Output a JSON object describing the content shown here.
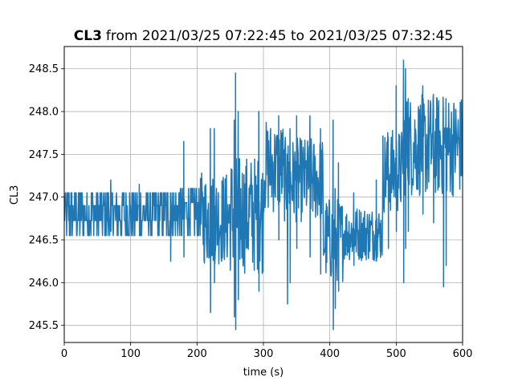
{
  "chart_data": {
    "type": "line",
    "title": {
      "bold_part": "CL3",
      "rest": "from 2021/03/25 07:22:45 to 2021/03/25 07:32:45"
    },
    "xlabel": "time (s)",
    "ylabel": "CL3",
    "xlim": [
      0,
      600
    ],
    "ylim": [
      245.3,
      248.76
    ],
    "x_ticks": [
      0,
      100,
      200,
      300,
      400,
      500,
      600
    ],
    "x_tick_labels": [
      "0",
      "100",
      "200",
      "300",
      "400",
      "500",
      "600"
    ],
    "y_ticks": [
      245.5,
      246.0,
      246.5,
      247.0,
      247.5,
      248.0,
      248.5
    ],
    "y_tick_labels": [
      "245.5",
      "246.0",
      "246.5",
      "247.0",
      "247.5",
      "248.0",
      "248.5"
    ],
    "grid": true,
    "line_color": "#1f77b4",
    "series": [
      {
        "x": [
          0,
          5,
          10,
          15,
          20,
          25,
          30,
          35,
          40,
          45,
          50,
          55,
          60,
          65,
          70,
          75,
          80,
          85,
          90,
          95,
          100,
          105,
          110,
          115,
          120,
          125,
          130,
          135,
          140,
          145,
          150,
          155,
          160,
          165,
          170,
          175,
          180,
          185,
          190,
          195,
          200,
          205,
          210,
          215,
          220,
          225,
          230,
          235,
          240,
          245,
          250,
          255,
          260,
          265,
          270,
          275,
          280,
          285,
          290,
          295,
          300,
          305,
          310,
          315,
          320,
          325,
          330,
          335,
          340,
          345,
          350,
          355,
          360,
          365,
          370,
          375,
          380,
          385,
          390,
          395,
          400,
          405,
          410,
          415,
          420,
          425,
          430,
          435,
          440,
          445,
          450,
          455,
          460,
          465,
          470,
          475,
          480,
          485,
          490,
          495,
          500,
          505,
          510,
          515,
          520,
          525,
          530,
          535,
          540,
          545,
          550,
          555,
          560,
          565,
          570,
          575,
          580,
          585,
          590,
          595,
          600
        ],
        "y": [
          246.8,
          246.95,
          246.7,
          247.0,
          246.6,
          246.9,
          246.75,
          247.0,
          246.6,
          246.85,
          246.95,
          246.7,
          246.8,
          247.0,
          246.65,
          246.9,
          246.8,
          247.0,
          246.7,
          246.95,
          246.6,
          246.85,
          247.0,
          246.75,
          246.65,
          246.9,
          247.0,
          246.7,
          246.8,
          247.0,
          246.6,
          246.9,
          246.75,
          246.8,
          247.0,
          246.7,
          246.85,
          246.9,
          246.8,
          246.7,
          246.6,
          247.0,
          246.5,
          246.4,
          247.05,
          247.25,
          246.45,
          246.7,
          246.3,
          246.55,
          246.8,
          247.1,
          246.6,
          247.25,
          247.4,
          247.0,
          246.7,
          247.1,
          246.95,
          247.3,
          247.1,
          247.4,
          247.45,
          246.8,
          247.5,
          247.65,
          247.2,
          247.55,
          246.85,
          247.3,
          247.5,
          247.8,
          247.1,
          247.55,
          247.35,
          247.6,
          247.0,
          247.35,
          246.8,
          247.1,
          246.3,
          246.75,
          246.55,
          246.9,
          246.4,
          246.75,
          246.55,
          246.8,
          246.4,
          246.55,
          246.6,
          246.85,
          246.65,
          246.45,
          246.9,
          246.7,
          247.05,
          247.3,
          246.95,
          247.5,
          247.2,
          247.8,
          247.6,
          247.9,
          247.45,
          247.7,
          247.85,
          247.3,
          247.6,
          247.9,
          247.55,
          247.45,
          247.85,
          247.65,
          247.2,
          247.75,
          247.4,
          247.9,
          247.2,
          247.6,
          247.9
        ]
      }
    ],
    "noise_bands": [
      {
        "from": 0,
        "to": 175,
        "low": 246.55,
        "high": 247.05
      },
      {
        "from": 175,
        "to": 205,
        "low": 246.55,
        "high": 247.1
      },
      {
        "from": 205,
        "to": 250,
        "low": 246.2,
        "high": 247.3
      },
      {
        "from": 250,
        "to": 300,
        "low": 246.1,
        "high": 247.5
      },
      {
        "from": 300,
        "to": 330,
        "low": 246.8,
        "high": 247.9
      },
      {
        "from": 330,
        "to": 390,
        "low": 246.7,
        "high": 247.7
      },
      {
        "from": 390,
        "to": 420,
        "low": 246.0,
        "high": 247.0
      },
      {
        "from": 420,
        "to": 480,
        "low": 246.25,
        "high": 246.9
      },
      {
        "from": 480,
        "to": 510,
        "low": 246.8,
        "high": 247.8
      },
      {
        "from": 510,
        "to": 600,
        "low": 247.0,
        "high": 248.2
      }
    ],
    "spikes": [
      {
        "x": 258,
        "low": 245.45,
        "high": 248.45
      },
      {
        "x": 256,
        "low": 245.6,
        "high": 247.9
      },
      {
        "x": 262,
        "low": 245.8,
        "high": 248.0
      },
      {
        "x": 220,
        "low": 245.65,
        "high": 247.8
      },
      {
        "x": 226,
        "low": 246.0,
        "high": 247.8
      },
      {
        "x": 180,
        "low": 246.3,
        "high": 247.65
      },
      {
        "x": 293,
        "low": 245.9,
        "high": 248.0
      },
      {
        "x": 336,
        "low": 245.75,
        "high": 247.5
      },
      {
        "x": 340,
        "low": 246.0,
        "high": 247.8
      },
      {
        "x": 323,
        "low": 246.5,
        "high": 247.95
      },
      {
        "x": 350,
        "low": 246.4,
        "high": 247.95
      },
      {
        "x": 370,
        "low": 246.3,
        "high": 247.95
      },
      {
        "x": 386,
        "low": 246.1,
        "high": 247.8
      },
      {
        "x": 405,
        "low": 245.45,
        "high": 247.9
      },
      {
        "x": 408,
        "low": 245.7,
        "high": 247.1
      },
      {
        "x": 413,
        "low": 245.9,
        "high": 247.4
      },
      {
        "x": 436,
        "low": 246.2,
        "high": 247.05
      },
      {
        "x": 470,
        "low": 246.3,
        "high": 247.2
      },
      {
        "x": 488,
        "low": 246.4,
        "high": 247.7
      },
      {
        "x": 500,
        "low": 246.6,
        "high": 248.3
      },
      {
        "x": 511,
        "low": 246.0,
        "high": 248.6
      },
      {
        "x": 514,
        "low": 246.4,
        "high": 248.5
      },
      {
        "x": 518,
        "low": 246.6,
        "high": 248.15
      },
      {
        "x": 540,
        "low": 246.8,
        "high": 248.3
      },
      {
        "x": 556,
        "low": 246.7,
        "high": 248.2
      },
      {
        "x": 571,
        "low": 245.95,
        "high": 248.0
      },
      {
        "x": 575,
        "low": 246.2,
        "high": 248.15
      },
      {
        "x": 160,
        "low": 246.25,
        "high": 247.05
      },
      {
        "x": 70,
        "low": 246.6,
        "high": 247.2
      },
      {
        "x": 113,
        "low": 246.55,
        "high": 247.15
      }
    ]
  }
}
